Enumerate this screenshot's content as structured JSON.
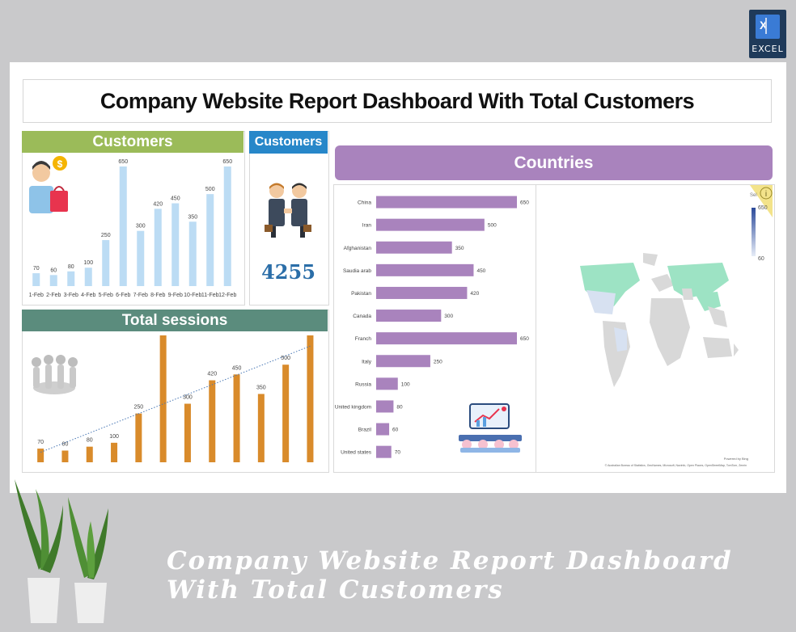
{
  "badge": {
    "label": "EXCEL",
    "letter": "X"
  },
  "title": "Company Website Report Dashboard With Total Customers",
  "customers_panel": {
    "header": "Customers"
  },
  "kpi_panel": {
    "header": "Customers",
    "value": "4255"
  },
  "sessions_panel": {
    "header": "Total sessions"
  },
  "countries_panel": {
    "header": "Countries"
  },
  "map": {
    "legend_label": "Sel",
    "legend_max": "650",
    "legend_min": "60",
    "powered_by": "Powered by Bing",
    "attribution": "© Australian Bureau of Statistics, GeoNames, Microsoft, Navinfo, Open Places, OpenStreetMap, TomTom, Zenrin"
  },
  "footer_title": "Company Website Report Dashboard With Total Customers",
  "colors": {
    "customers_bar": "#bcdcf4",
    "sessions_bar": "#d98b2b",
    "country_bar": "#a983bd",
    "customers_header": "#9bbb59",
    "kpi_header": "#2787c9",
    "sessions_header": "#5b8c7d",
    "countries_header": "#a983bd"
  },
  "chart_data": [
    {
      "type": "bar",
      "title": "Customers",
      "categories": [
        "1-Feb",
        "2-Feb",
        "3-Feb",
        "4-Feb",
        "5-Feb",
        "6-Feb",
        "7-Feb",
        "8-Feb",
        "9-Feb",
        "10-Feb",
        "11-Feb",
        "12-Feb"
      ],
      "values": [
        70,
        60,
        80,
        100,
        250,
        650,
        300,
        420,
        450,
        350,
        500,
        650
      ],
      "ylim": [
        0,
        650
      ],
      "grid": false
    },
    {
      "type": "bar",
      "title": "Total sessions",
      "values": [
        70,
        60,
        80,
        100,
        250,
        650,
        300,
        420,
        450,
        350,
        500,
        650
      ],
      "trendline": "linear dotted",
      "ylim": [
        0,
        650
      ],
      "grid": false
    },
    {
      "type": "bar",
      "orientation": "horizontal",
      "categories": [
        "China",
        "Iran",
        "Afghanistan",
        "Saudia arab",
        "Pakistan",
        "Canada",
        "Franch",
        "Italy",
        "Russia",
        "United kingdom",
        "Brazil",
        "United states"
      ],
      "values": [
        650,
        500,
        350,
        450,
        420,
        300,
        650,
        250,
        100,
        80,
        60,
        70
      ],
      "xlim": [
        0,
        650
      ],
      "grid": false
    }
  ]
}
